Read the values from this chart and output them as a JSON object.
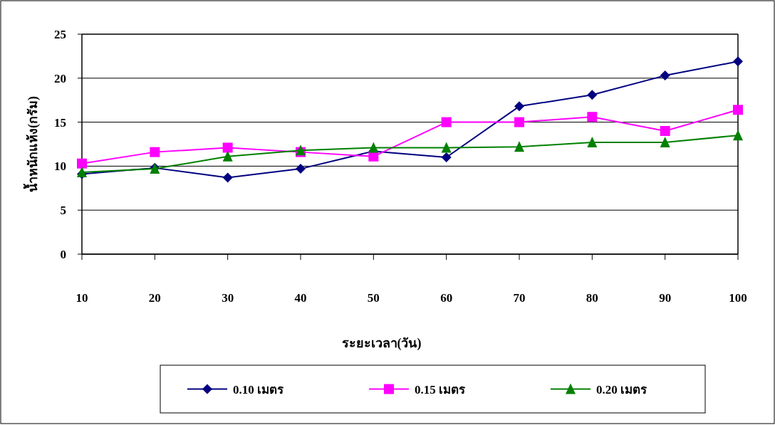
{
  "chart_data": {
    "type": "line",
    "xlabel": "ระยะเวลา(วัน)",
    "ylabel": "น้ำหนักแห้ง(กรัม)",
    "categories": [
      "10",
      "20",
      "30",
      "40",
      "50",
      "60",
      "70",
      "80",
      "90",
      "100"
    ],
    "series": [
      {
        "name": "0.10 เมตร",
        "color": "#000080",
        "marker": "diamond",
        "values": [
          9.1,
          9.8,
          8.7,
          9.7,
          11.7,
          11.0,
          16.8,
          18.1,
          20.3,
          21.9
        ]
      },
      {
        "name": "0.15 เมตร",
        "color": "#ff00ff",
        "marker": "square",
        "values": [
          10.3,
          11.6,
          12.1,
          11.6,
          11.1,
          15.0,
          15.0,
          15.6,
          14.0,
          16.4
        ]
      },
      {
        "name": "0.20 เมตร",
        "color": "#008000",
        "marker": "triangle",
        "values": [
          9.3,
          9.7,
          11.1,
          11.8,
          12.1,
          12.1,
          12.2,
          12.7,
          12.7,
          13.5
        ]
      }
    ],
    "ylim": [
      0,
      25
    ],
    "yticks": [
      0,
      5,
      10,
      15,
      20,
      25
    ],
    "grid": "y",
    "legend": "bottom"
  }
}
